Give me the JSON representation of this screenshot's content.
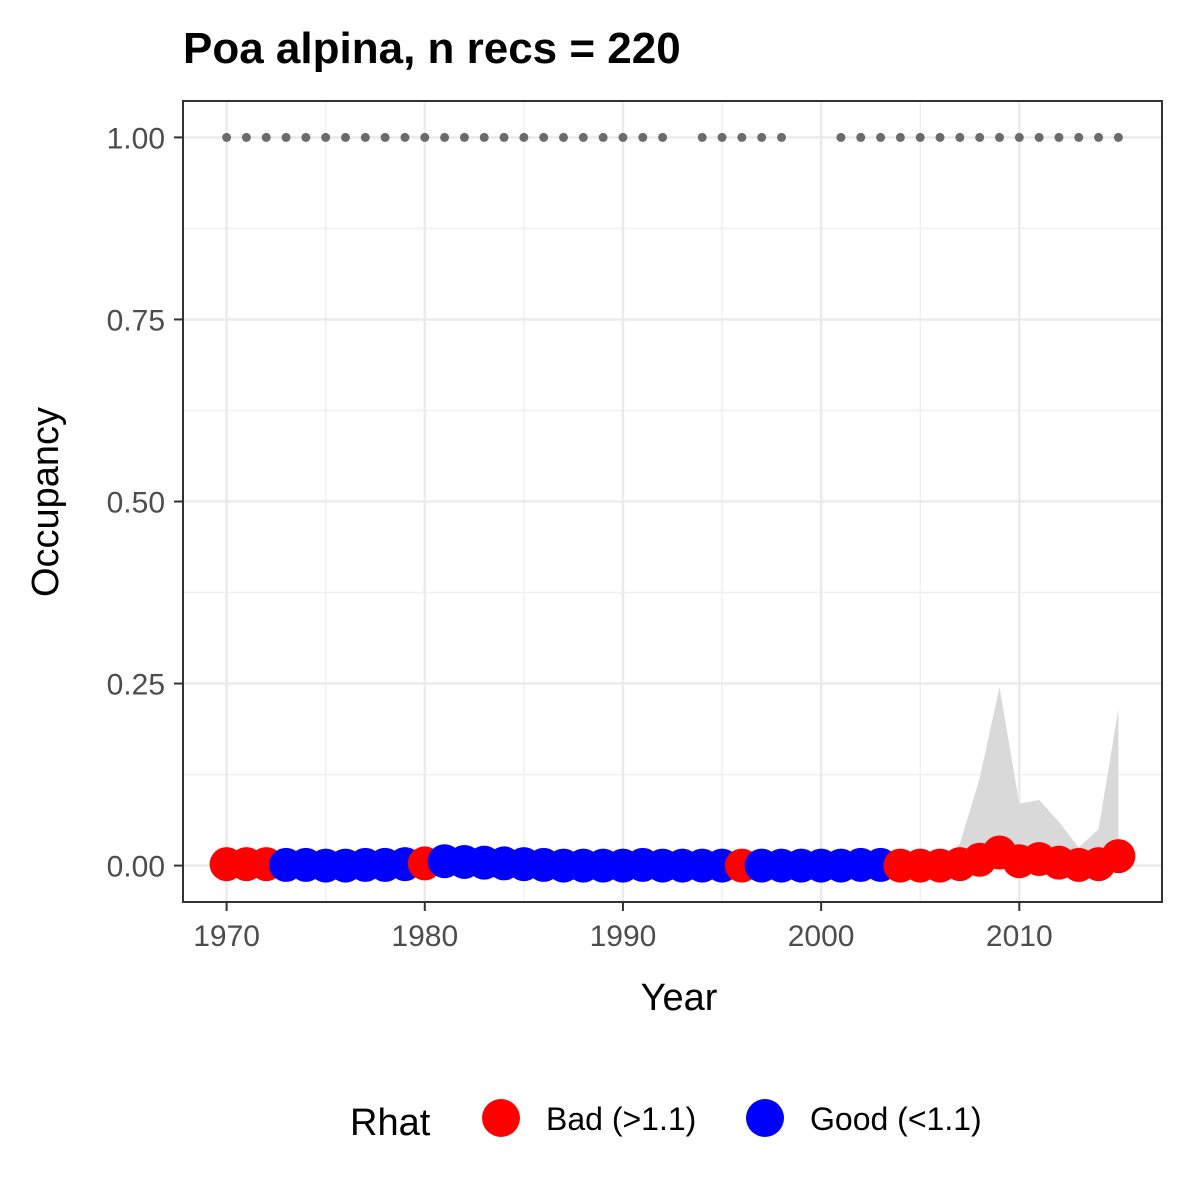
{
  "chart_data": {
    "type": "scatter",
    "title": "Poa alpina, n recs = 220",
    "xlabel": "Year",
    "ylabel": "Occupancy",
    "xlim": [
      1967.8,
      2017.2
    ],
    "ylim": [
      -0.05,
      1.05
    ],
    "x_ticks": [
      1970,
      1980,
      1990,
      2000,
      2010
    ],
    "x_tick_labels": [
      "1970",
      "1980",
      "1990",
      "2000",
      "2010"
    ],
    "y_ticks": [
      0,
      0.25,
      0.5,
      0.75,
      1.0
    ],
    "y_tick_labels": [
      "0.00",
      "0.25",
      "0.50",
      "0.75",
      "1.00"
    ],
    "grid": true,
    "legend": {
      "title": "Rhat",
      "position": "bottom",
      "entries": [
        {
          "label": "Bad (>1.1)",
          "color": "#ff0000"
        },
        {
          "label": "Good (<1.1)",
          "color": "#0000ff"
        }
      ]
    },
    "colors": {
      "bad": "#ff0000",
      "good": "#0000ff",
      "ribbon": "#d9d9d9",
      "reference_dots": "#6b6b6b"
    },
    "years": [
      1970,
      1971,
      1972,
      1973,
      1974,
      1975,
      1976,
      1977,
      1978,
      1979,
      1980,
      1981,
      1982,
      1983,
      1984,
      1985,
      1986,
      1987,
      1988,
      1989,
      1990,
      1991,
      1992,
      1993,
      1994,
      1995,
      1996,
      1997,
      1998,
      1999,
      2000,
      2001,
      2002,
      2003,
      2004,
      2005,
      2006,
      2007,
      2008,
      2009,
      2010,
      2011,
      2012,
      2013,
      2014,
      2015
    ],
    "occupancy": [
      0.002,
      0.002,
      0.002,
      0.001,
      0.001,
      0.0,
      0.0,
      0.001,
      0.001,
      0.002,
      0.003,
      0.006,
      0.005,
      0.004,
      0.003,
      0.002,
      0.001,
      0.0,
      0.0,
      0.0,
      0.0,
      0.001,
      0.0,
      0.0,
      0.0,
      0.0,
      0.0,
      0.0,
      0.0,
      0.0,
      0.0,
      0.0,
      0.001,
      0.001,
      0.0,
      0.0,
      0.0,
      0.002,
      0.008,
      0.018,
      0.006,
      0.009,
      0.004,
      0.001,
      0.002,
      0.013
    ],
    "rhat": [
      "Bad",
      "Bad",
      "Bad",
      "Good",
      "Good",
      "Good",
      "Good",
      "Good",
      "Good",
      "Good",
      "Bad",
      "Good",
      "Good",
      "Good",
      "Good",
      "Good",
      "Good",
      "Good",
      "Good",
      "Good",
      "Good",
      "Good",
      "Good",
      "Good",
      "Good",
      "Good",
      "Bad",
      "Good",
      "Good",
      "Good",
      "Good",
      "Good",
      "Good",
      "Good",
      "Bad",
      "Bad",
      "Bad",
      "Bad",
      "Bad",
      "Bad",
      "Bad",
      "Bad",
      "Bad",
      "Bad",
      "Bad",
      "Bad"
    ],
    "ribbon": {
      "years": [
        2006,
        2007,
        2008,
        2009,
        2010,
        2011,
        2012,
        2013,
        2014,
        2015
      ],
      "lower": [
        0,
        0,
        0,
        0,
        0,
        0,
        0,
        0,
        0,
        0
      ],
      "upper": [
        0,
        0.03,
        0.12,
        0.245,
        0.085,
        0.09,
        0.06,
        0.025,
        0.05,
        0.215
      ]
    },
    "reference_points": {
      "y": 1.0,
      "years": [
        1970,
        1971,
        1972,
        1973,
        1974,
        1975,
        1976,
        1977,
        1978,
        1979,
        1980,
        1981,
        1982,
        1983,
        1984,
        1985,
        1986,
        1987,
        1988,
        1989,
        1990,
        1991,
        1992,
        1993,
        1994,
        1995,
        1996,
        1997,
        1998,
        1999,
        2000,
        2001,
        2002,
        2003,
        2004,
        2005,
        2006,
        2007,
        2008,
        2009,
        2010,
        2011,
        2012,
        2013,
        2014,
        2015
      ],
      "present": [
        1,
        1,
        1,
        1,
        1,
        1,
        1,
        1,
        1,
        1,
        1,
        1,
        1,
        1,
        1,
        1,
        1,
        1,
        1,
        1,
        1,
        1,
        1,
        0,
        1,
        1,
        1,
        1,
        1,
        0,
        0,
        1,
        1,
        1,
        1,
        1,
        1,
        1,
        1,
        1,
        1,
        1,
        1,
        1,
        1,
        1
      ]
    }
  }
}
